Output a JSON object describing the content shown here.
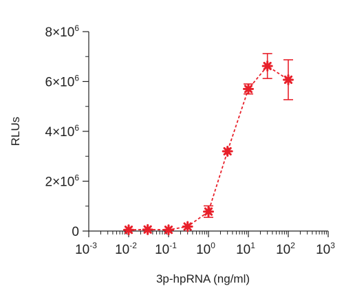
{
  "chart_data": {
    "type": "scatter",
    "xlabel": "3p-hpRNA (ng/ml)",
    "ylabel": "RLUs",
    "x_scale": "log",
    "xlim": [
      0.001,
      1000
    ],
    "ylim": [
      0,
      8000000
    ],
    "x_ticks": [
      {
        "base": "10",
        "exp": "-3"
      },
      {
        "base": "10",
        "exp": "-2"
      },
      {
        "base": "10",
        "exp": "-1"
      },
      {
        "base": "10",
        "exp": "0"
      },
      {
        "base": "10",
        "exp": "1"
      },
      {
        "base": "10",
        "exp": "2"
      },
      {
        "base": "10",
        "exp": "3"
      }
    ],
    "y_ticks": [
      {
        "value": 0,
        "label": "0",
        "exp": ""
      },
      {
        "value": 2000000,
        "label": "2×10",
        "exp": "6"
      },
      {
        "value": 4000000,
        "label": "4×10",
        "exp": "6"
      },
      {
        "value": 6000000,
        "label": "6×10",
        "exp": "6"
      },
      {
        "value": 8000000,
        "label": "8×10",
        "exp": "6"
      }
    ],
    "series": [
      {
        "color": "#e8202a",
        "marker": "asterisk",
        "line": "dashed",
        "points": [
          {
            "x": 0.01,
            "y": 50000,
            "err": 0
          },
          {
            "x": 0.03,
            "y": 60000,
            "err": 0
          },
          {
            "x": 0.1,
            "y": 50000,
            "err": 0
          },
          {
            "x": 0.3,
            "y": 180000,
            "err": 0
          },
          {
            "x": 1,
            "y": 780000,
            "err": 230000
          },
          {
            "x": 3,
            "y": 3200000,
            "err": 0
          },
          {
            "x": 10,
            "y": 5700000,
            "err": 200000
          },
          {
            "x": 30,
            "y": 6620000,
            "err": 500000
          },
          {
            "x": 100,
            "y": 6070000,
            "err": 800000
          }
        ]
      }
    ]
  }
}
